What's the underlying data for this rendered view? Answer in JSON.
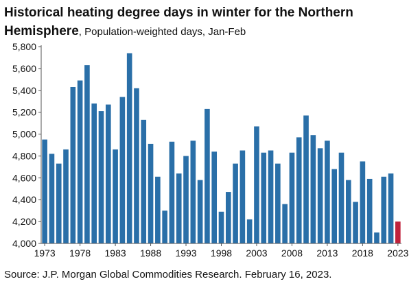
{
  "header": {
    "title": "Historical heating degree days in winter for the Northern Hemisphere",
    "subtitle": "Population-weighted days, Jan-Feb"
  },
  "footer": {
    "source": "Source: J.P. Morgan Global Commodities Research. February 16, 2023."
  },
  "colors": {
    "bar": "#2a6fa8",
    "highlight": "#c0223b"
  },
  "chart_data": {
    "type": "bar",
    "title": "Historical heating degree days in winter for the Northern Hemisphere",
    "subtitle": "Population-weighted days, Jan-Feb",
    "ylim": [
      4000,
      5800
    ],
    "yticks": [
      4000,
      4200,
      4400,
      4600,
      4800,
      5000,
      5200,
      5400,
      5600,
      5800
    ],
    "ytick_labels": [
      "4,000",
      "4,200",
      "4,400",
      "4,600",
      "4,800",
      "5,000",
      "5,200",
      "5,400",
      "5,600",
      "5,800"
    ],
    "xtick_labels": [
      "1973",
      "1978",
      "1983",
      "1988",
      "1993",
      "1998",
      "2003",
      "2008",
      "2013",
      "2018",
      "2023"
    ],
    "grid": false,
    "highlighted_category": "2023",
    "categories": [
      "1973",
      "1974",
      "1975",
      "1976",
      "1977",
      "1978",
      "1979",
      "1980",
      "1981",
      "1982",
      "1983",
      "1984",
      "1985",
      "1986",
      "1987",
      "1988",
      "1989",
      "1990",
      "1991",
      "1992",
      "1993",
      "1994",
      "1995",
      "1996",
      "1997",
      "1998",
      "1999",
      "2000",
      "2001",
      "2002",
      "2003",
      "2004",
      "2005",
      "2006",
      "2007",
      "2008",
      "2009",
      "2010",
      "2011",
      "2012",
      "2013",
      "2014",
      "2015",
      "2016",
      "2017",
      "2018",
      "2019",
      "2020",
      "2021",
      "2022",
      "2023"
    ],
    "values": [
      4950,
      4820,
      4730,
      4860,
      5430,
      5490,
      5630,
      5280,
      5210,
      5270,
      4860,
      5340,
      5740,
      5420,
      5130,
      4910,
      4610,
      4300,
      4930,
      4640,
      4800,
      4940,
      4580,
      5230,
      4840,
      4290,
      4470,
      4730,
      4850,
      4220,
      5070,
      4830,
      4850,
      4730,
      4360,
      4830,
      4970,
      5170,
      4990,
      4870,
      4940,
      4680,
      4830,
      4580,
      4380,
      4750,
      4590,
      4100,
      4610,
      4640,
      4200
    ]
  }
}
